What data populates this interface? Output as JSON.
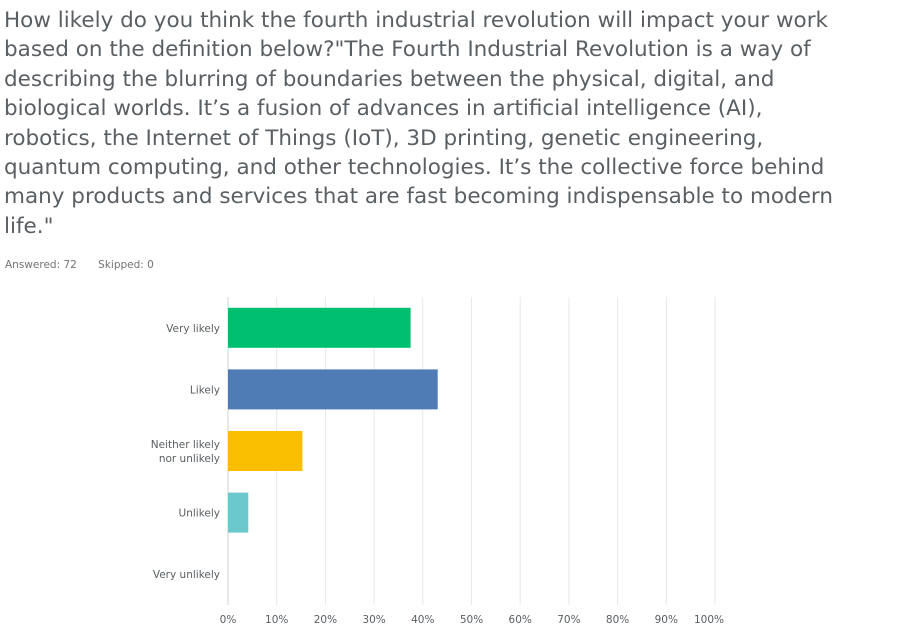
{
  "question": {
    "text": "How likely do you think the fourth industrial revolution will impact your work\nbased on the definition below?\"The Fourth Industrial Revolution is a way of\ndescribing the blurring of boundaries between the physical, digital, and\nbiological worlds. It’s a fusion of advances in artificial intelligence (AI),\nrobotics, the Internet of Things (IoT), 3D printing, genetic engineering,\nquantum computing, and other technologies. It’s the collective force behind\nmany products and services that are fast becoming indispensable to modern\nlife.\""
  },
  "meta": {
    "answered": "Answered: 72",
    "skipped": "Skipped: 0"
  },
  "chart_data": {
    "type": "bar",
    "orientation": "horizontal",
    "categories": [
      [
        "Very likely"
      ],
      [
        "Likely"
      ],
      [
        "Neither likely",
        "nor unlikely"
      ],
      [
        "Unlikely"
      ],
      [
        "Very unlikely"
      ]
    ],
    "values": [
      37.5,
      43.06,
      15.28,
      4.17,
      0
    ],
    "colors": [
      "#00bf6f",
      "#507cb6",
      "#f9be00",
      "#6bc8cd",
      "#ff8b4f"
    ],
    "xlim": [
      0,
      100
    ],
    "x_ticks": [
      "0%",
      "10%",
      "20%",
      "30%",
      "40%",
      "50%",
      "60%",
      "70%",
      "80%",
      "90%",
      "100%"
    ],
    "grid": true,
    "title": "",
    "xlabel": "",
    "ylabel": ""
  }
}
